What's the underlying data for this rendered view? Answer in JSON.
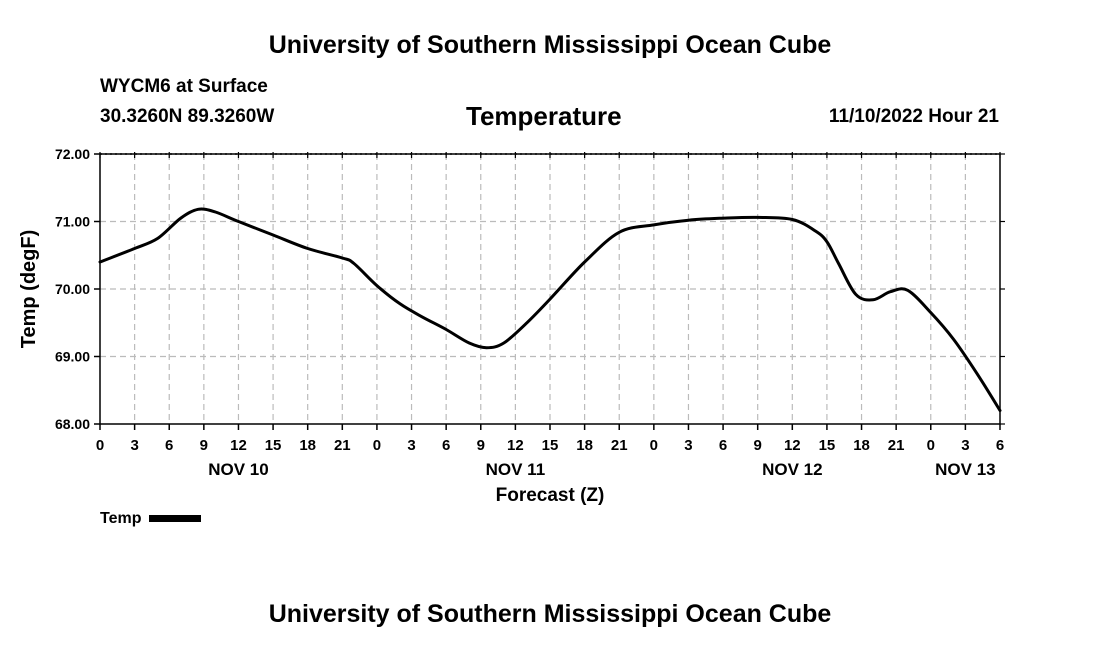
{
  "header": {
    "title": "University of Southern Mississippi Ocean Cube",
    "station": "WYCM6 at Surface",
    "coords": "30.3260N  89.3260W",
    "variable": "Temperature",
    "date": "11/10/2022 Hour 21",
    "footer_title": "University of Southern Mississippi Ocean Cube"
  },
  "legend": {
    "label": "Temp",
    "color": "#000000"
  },
  "chart_data": {
    "type": "line",
    "title": "Temperature",
    "xlabel": "Forecast (Z)",
    "ylabel": "Temp (degF)",
    "ylim": [
      68.0,
      72.0
    ],
    "xlim": [
      0,
      78
    ],
    "yticks": [
      "68.00",
      "69.00",
      "70.00",
      "71.00",
      "72.00"
    ],
    "yticks_values": [
      68,
      69,
      70,
      71,
      72
    ],
    "xtick_values": [
      0,
      3,
      6,
      9,
      12,
      15,
      18,
      21,
      24,
      27,
      30,
      33,
      36,
      39,
      42,
      45,
      48,
      51,
      54,
      57,
      60,
      63,
      66,
      69,
      72,
      75,
      78
    ],
    "xtick_labels": [
      "0",
      "3",
      "6",
      "9",
      "12",
      "15",
      "18",
      "21",
      "0",
      "3",
      "6",
      "9",
      "12",
      "15",
      "18",
      "21",
      "0",
      "3",
      "6",
      "9",
      "12",
      "15",
      "18",
      "21",
      "0",
      "3",
      "6"
    ],
    "day_labels": [
      {
        "text": "NOV 10",
        "x": 12
      },
      {
        "text": "NOV 11",
        "x": 36
      },
      {
        "text": "NOV 12",
        "x": 60
      },
      {
        "text": "NOV 13",
        "x": 75
      }
    ],
    "grid": true,
    "series": [
      {
        "name": "Temp",
        "x": [
          0,
          3,
          5,
          7,
          8.5,
          10,
          12,
          15,
          18,
          21,
          22,
          24,
          26,
          28,
          30,
          32,
          33.5,
          35,
          37,
          39,
          42,
          45,
          48,
          51,
          54,
          57,
          60,
          62,
          63,
          64,
          65.5,
          67,
          68.5,
          70,
          72,
          74,
          76,
          78
        ],
        "y": [
          70.4,
          70.6,
          70.75,
          71.05,
          71.18,
          71.14,
          71.0,
          70.8,
          70.6,
          70.46,
          70.38,
          70.05,
          69.78,
          69.58,
          69.4,
          69.2,
          69.13,
          69.2,
          69.5,
          69.85,
          70.4,
          70.84,
          70.95,
          71.02,
          71.05,
          71.06,
          71.03,
          70.86,
          70.7,
          70.38,
          69.92,
          69.84,
          69.96,
          69.98,
          69.65,
          69.25,
          68.75,
          68.2
        ]
      }
    ]
  }
}
